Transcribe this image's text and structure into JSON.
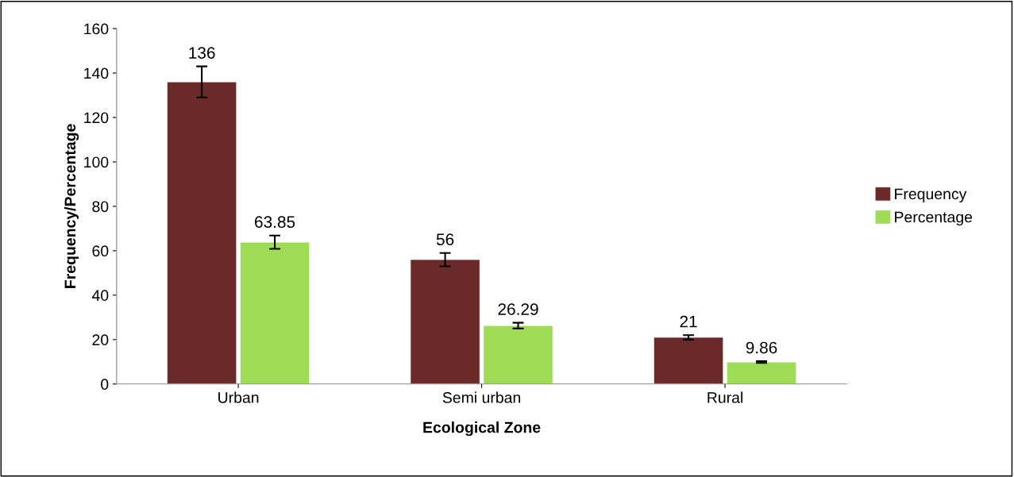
{
  "chart_data": {
    "type": "bar",
    "xlabel": "Ecological Zone",
    "ylabel": "Frequency/Percentage",
    "categories": [
      "Urban",
      "Semi urban",
      "Rural"
    ],
    "series": [
      {
        "name": "Frequency",
        "color": "#6b2a2a",
        "values": [
          136,
          56,
          21
        ],
        "errors": [
          7,
          3,
          1
        ]
      },
      {
        "name": "Percentage",
        "color": "#9edc55",
        "values": [
          63.85,
          26.29,
          9.86
        ],
        "errors": [
          3,
          1.3,
          0.4
        ]
      }
    ],
    "ylim": [
      0,
      160
    ],
    "yticks": [
      0,
      20,
      40,
      60,
      80,
      100,
      120,
      140,
      160
    ],
    "data_labels": true,
    "grid": false,
    "legend": "right"
  }
}
